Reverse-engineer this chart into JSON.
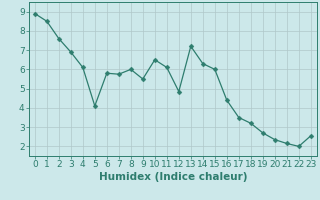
{
  "x": [
    0,
    1,
    2,
    3,
    4,
    5,
    6,
    7,
    8,
    9,
    10,
    11,
    12,
    13,
    14,
    15,
    16,
    17,
    18,
    19,
    20,
    21,
    22,
    23
  ],
  "y": [
    8.9,
    8.5,
    7.6,
    6.9,
    6.1,
    4.1,
    5.8,
    5.75,
    6.0,
    5.5,
    6.5,
    6.1,
    4.85,
    7.2,
    6.3,
    6.0,
    4.4,
    3.5,
    3.2,
    2.7,
    2.35,
    2.15,
    2.0,
    2.55
  ],
  "line_color": "#2e7d6e",
  "marker": "D",
  "marker_size": 2.5,
  "xlabel": "Humidex (Indice chaleur)",
  "xlim": [
    -0.5,
    23.5
  ],
  "ylim": [
    1.5,
    9.5
  ],
  "yticks": [
    2,
    3,
    4,
    5,
    6,
    7,
    8,
    9
  ],
  "xticks": [
    0,
    1,
    2,
    3,
    4,
    5,
    6,
    7,
    8,
    9,
    10,
    11,
    12,
    13,
    14,
    15,
    16,
    17,
    18,
    19,
    20,
    21,
    22,
    23
  ],
  "background_color": "#cce8ea",
  "grid_color": "#b0c8ca",
  "line_width": 0.9,
  "tick_color": "#2e7d6e",
  "label_color": "#2e7d6e",
  "font_size": 6.5,
  "xlabel_font_size": 7.5
}
